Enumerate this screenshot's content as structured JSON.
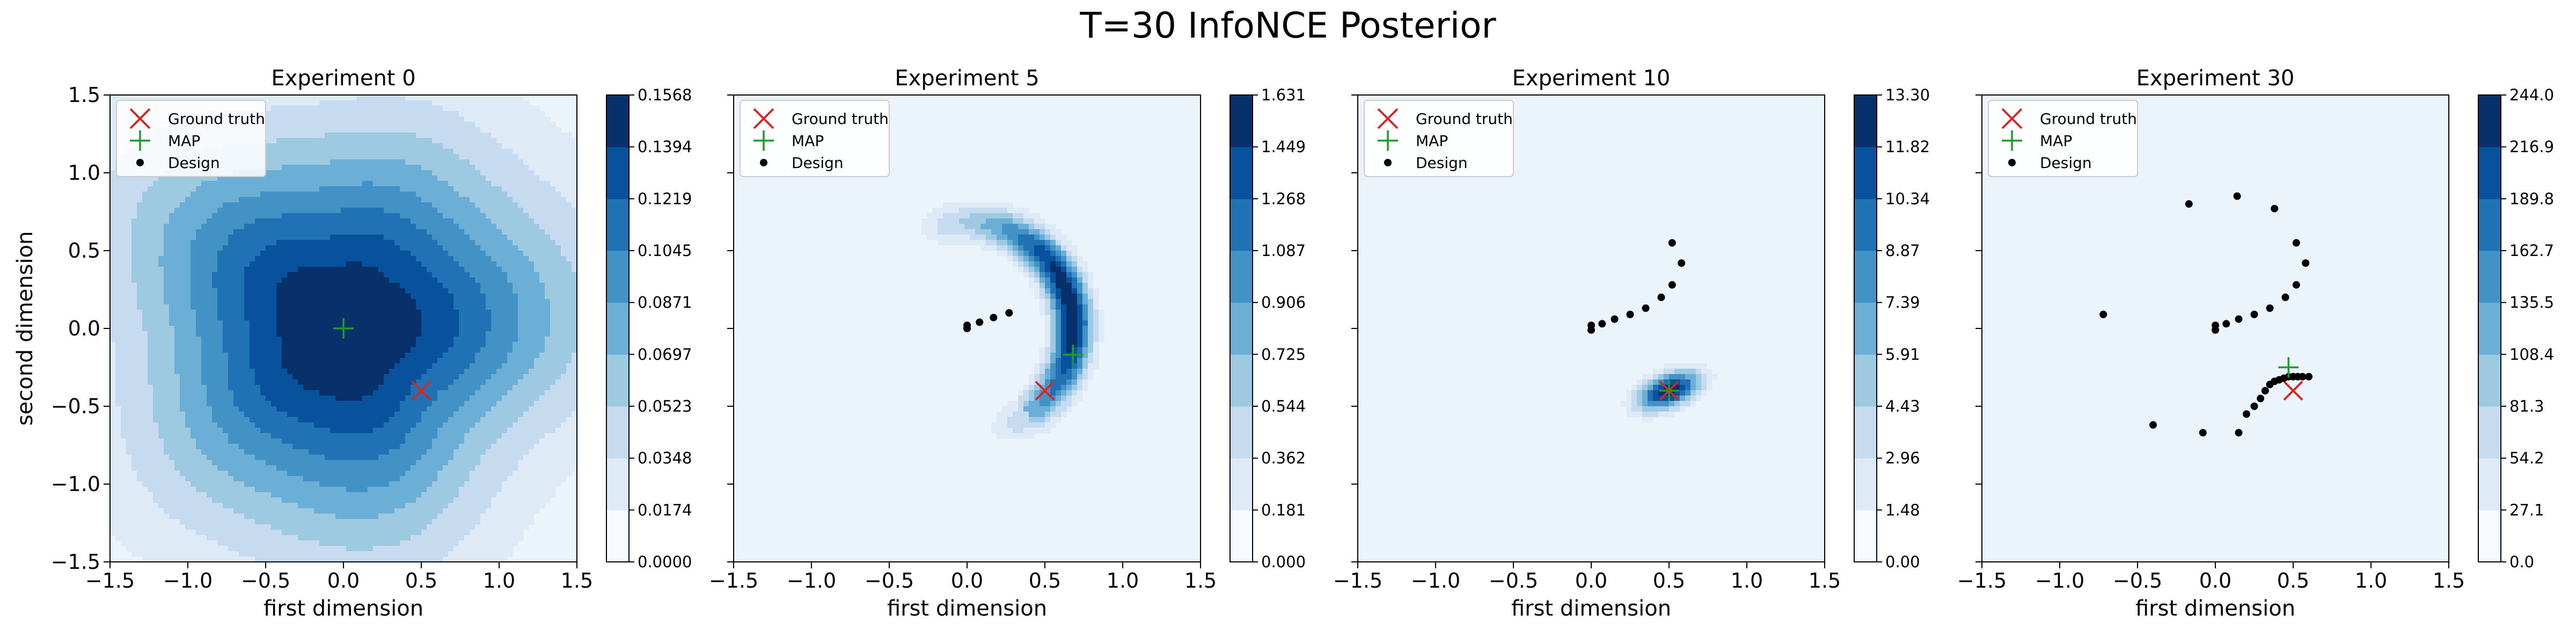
{
  "chart_data": {
    "type": "contour",
    "title": "T=30 InfoNCE Posterior",
    "panels": [
      {
        "title": "Experiment 0",
        "xlabel": "first dimension",
        "ylabel": "second dimension",
        "xlim": [
          -1.5,
          1.5
        ],
        "ylim": [
          -1.5,
          1.5
        ],
        "xticks": [
          "−1.5",
          "−1.0",
          "−0.5",
          "0.0",
          "0.5",
          "1.0",
          "1.5"
        ],
        "yticks": [
          "−1.5",
          "−1.0",
          "−0.5",
          "0.0",
          "0.5",
          "1.0",
          "1.5"
        ],
        "colorbar_levels": [
          "0.0000",
          "0.0174",
          "0.0348",
          "0.0523",
          "0.0697",
          "0.0871",
          "0.1045",
          "0.1219",
          "0.1394",
          "0.1568"
        ],
        "ground_truth": [
          0.5,
          -0.4
        ],
        "map": [
          0.0,
          0.0
        ],
        "design": [],
        "posterior": {
          "kind": "broad",
          "mean": [
            0.0,
            0.0
          ],
          "sigma": [
            0.95,
            0.9
          ]
        }
      },
      {
        "title": "Experiment 5",
        "xlabel": "first dimension",
        "ylabel": "",
        "xlim": [
          -1.5,
          1.5
        ],
        "ylim": [
          -1.5,
          1.5
        ],
        "xticks": [
          "−1.5",
          "−1.0",
          "−0.5",
          "0.0",
          "0.5",
          "1.0",
          "1.5"
        ],
        "yticks": [],
        "colorbar_levels": [
          "0.000",
          "0.181",
          "0.362",
          "0.544",
          "0.725",
          "0.906",
          "1.087",
          "1.268",
          "1.449",
          "1.631"
        ],
        "ground_truth": [
          0.5,
          -0.4
        ],
        "map": [
          0.68,
          -0.17
        ],
        "design": [
          [
            0.0,
            0.02
          ],
          [
            0.0,
            0.0
          ],
          [
            0.08,
            0.04
          ],
          [
            0.17,
            0.07
          ],
          [
            0.27,
            0.1
          ]
        ],
        "posterior": {
          "kind": "arc",
          "center": [
            0.0,
            0.0
          ],
          "radius": 0.68,
          "angle_from": -55,
          "angle_to": 95,
          "peak_angle": 12,
          "width": 0.09
        }
      },
      {
        "title": "Experiment 10",
        "xlabel": "first dimension",
        "ylabel": "",
        "xlim": [
          -1.5,
          1.5
        ],
        "ylim": [
          -1.5,
          1.5
        ],
        "xticks": [
          "−1.5",
          "−1.0",
          "−0.5",
          "0.0",
          "0.5",
          "1.0",
          "1.5"
        ],
        "yticks": [],
        "colorbar_levels": [
          "0.00",
          "1.48",
          "2.96",
          "4.43",
          "5.91",
          "7.39",
          "8.87",
          "10.34",
          "11.82",
          "13.30"
        ],
        "ground_truth": [
          0.5,
          -0.4
        ],
        "map": [
          0.5,
          -0.4
        ],
        "design": [
          [
            0.0,
            0.02
          ],
          [
            0.0,
            -0.01
          ],
          [
            0.07,
            0.03
          ],
          [
            0.15,
            0.06
          ],
          [
            0.25,
            0.09
          ],
          [
            0.35,
            0.13
          ],
          [
            0.45,
            0.2
          ],
          [
            0.52,
            0.28
          ],
          [
            0.58,
            0.42
          ],
          [
            0.52,
            0.55
          ]
        ],
        "posterior": {
          "kind": "peak",
          "mean": [
            0.5,
            -0.4
          ],
          "sigma": [
            0.15,
            0.075
          ],
          "rotation": 22
        }
      },
      {
        "title": "Experiment 30",
        "xlabel": "first dimension",
        "ylabel": "",
        "xlim": [
          -1.5,
          1.5
        ],
        "ylim": [
          -1.5,
          1.5
        ],
        "xticks": [
          "−1.5",
          "−1.0",
          "−0.5",
          "0.0",
          "0.5",
          "1.0",
          "1.5"
        ],
        "yticks": [],
        "colorbar_levels": [
          "0.0",
          "27.1",
          "54.2",
          "81.3",
          "108.4",
          "135.5",
          "162.7",
          "189.8",
          "216.9",
          "244.0"
        ],
        "ground_truth": [
          0.5,
          -0.4
        ],
        "map": [
          0.47,
          -0.25
        ],
        "design": [
          [
            0.0,
            0.02
          ],
          [
            0.0,
            -0.01
          ],
          [
            0.07,
            0.03
          ],
          [
            0.15,
            0.06
          ],
          [
            0.25,
            0.09
          ],
          [
            0.35,
            0.13
          ],
          [
            0.45,
            0.2
          ],
          [
            0.52,
            0.28
          ],
          [
            0.58,
            0.42
          ],
          [
            0.52,
            0.55
          ],
          [
            -0.72,
            0.09
          ],
          [
            -0.17,
            0.8
          ],
          [
            0.14,
            0.85
          ],
          [
            0.38,
            0.77
          ],
          [
            -0.4,
            -0.62
          ],
          [
            -0.08,
            -0.67
          ],
          [
            0.15,
            -0.67
          ],
          [
            0.2,
            -0.55
          ],
          [
            0.25,
            -0.5
          ],
          [
            0.29,
            -0.45
          ],
          [
            0.32,
            -0.4
          ],
          [
            0.35,
            -0.36
          ],
          [
            0.38,
            -0.34
          ],
          [
            0.41,
            -0.33
          ],
          [
            0.44,
            -0.32
          ],
          [
            0.47,
            -0.31
          ],
          [
            0.5,
            -0.31
          ],
          [
            0.53,
            -0.31
          ],
          [
            0.56,
            -0.31
          ],
          [
            0.6,
            -0.31
          ]
        ],
        "posterior": {
          "kind": "none"
        }
      }
    ],
    "legend": {
      "placement": "upper-left",
      "entries": [
        "Ground truth",
        "MAP",
        "Design"
      ]
    },
    "colors": {
      "ground_truth": "#d62728",
      "map": "#1a9e2a",
      "design": "#000000",
      "colormap": [
        "#f7fbff",
        "#deebf7",
        "#c6dbef",
        "#9ecae1",
        "#6baed6",
        "#4292c6",
        "#2171b5",
        "#08519c",
        "#08306b"
      ]
    }
  }
}
